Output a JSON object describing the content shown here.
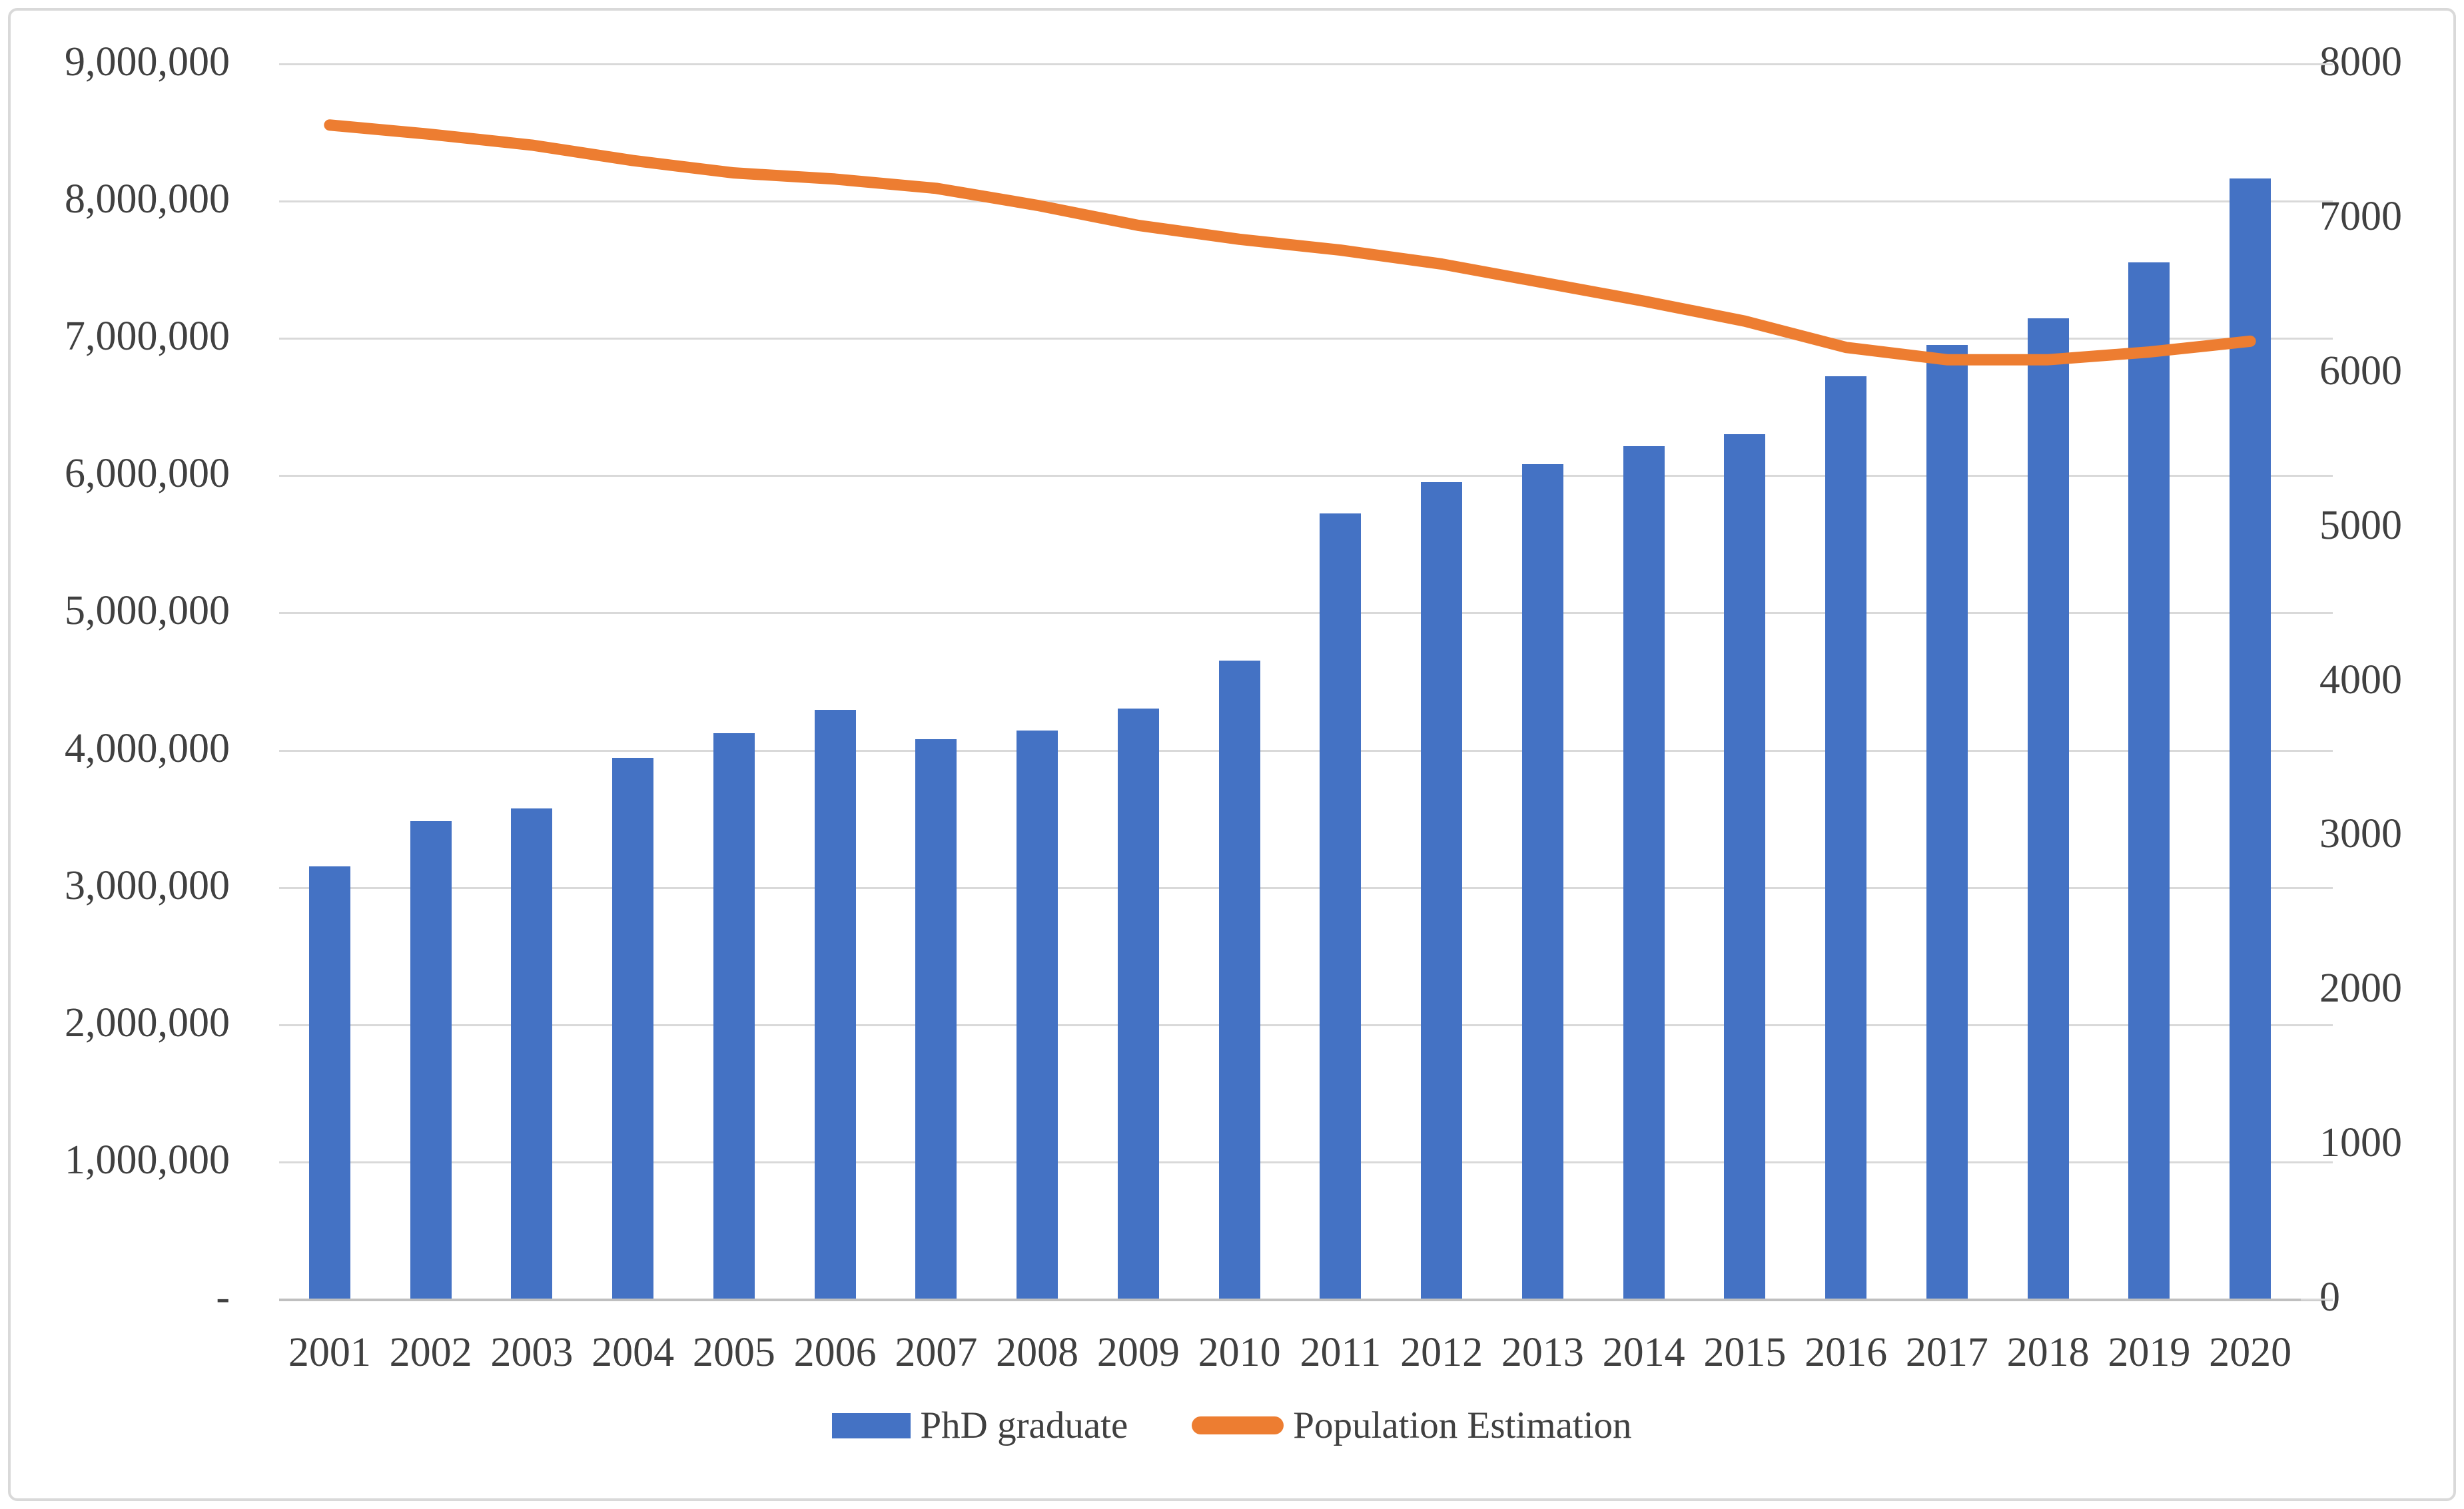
{
  "chart_data": {
    "type": "combo bar+line, dual y-axes",
    "categories": [
      "2001",
      "2002",
      "2003",
      "2004",
      "2005",
      "2006",
      "2007",
      "2008",
      "2009",
      "2010",
      "2011",
      "2012",
      "2013",
      "2014",
      "2015",
      "2016",
      "2017",
      "2018",
      "2019",
      "2020"
    ],
    "series": [
      {
        "name": "PhD graduate",
        "type": "bar",
        "axis": "left",
        "color": "#4472C4",
        "values": [
          3150000,
          3480000,
          3570000,
          3940000,
          4120000,
          4290000,
          4075000,
          4140000,
          4300000,
          4650000,
          5720000,
          5950000,
          6080000,
          6210000,
          6300000,
          6720000,
          6950000,
          7140000,
          7550000,
          8160000
        ]
      },
      {
        "name": "Population Estimation",
        "type": "line",
        "axis": "right",
        "color": "#ED7D31",
        "values": [
          7600,
          7540,
          7470,
          7370,
          7290,
          7250,
          7190,
          7080,
          6950,
          6860,
          6790,
          6700,
          6580,
          6460,
          6330,
          6160,
          6080,
          6080,
          6130,
          6200
        ]
      }
    ],
    "left_axis": {
      "min": 0,
      "max": 9000000,
      "step": 1000000,
      "tick_labels": [
        "-",
        "1,000,000",
        "2,000,000",
        "3,000,000",
        "4,000,000",
        "5,000,000",
        "6,000,000",
        "7,000,000",
        "8,000,000",
        "9,000,000"
      ]
    },
    "right_axis": {
      "min": 0,
      "max": 8000,
      "step": 1000,
      "tick_labels": [
        "0",
        "1000",
        "2000",
        "3000",
        "4000",
        "5000",
        "6000",
        "7000",
        "8000"
      ]
    },
    "grid": "horizontal gridlines at left-axis 1,000,000 steps",
    "legend_position": "bottom-center",
    "title": "",
    "xlabel": "",
    "ylabel": ""
  },
  "colors": {
    "bar": "#4472C4",
    "line": "#ED7D31",
    "grid": "#D9D9D9",
    "axis": "#BFBFBF",
    "text": "#404040",
    "background": "#FFFFFF",
    "border": "#D9D9D9"
  }
}
